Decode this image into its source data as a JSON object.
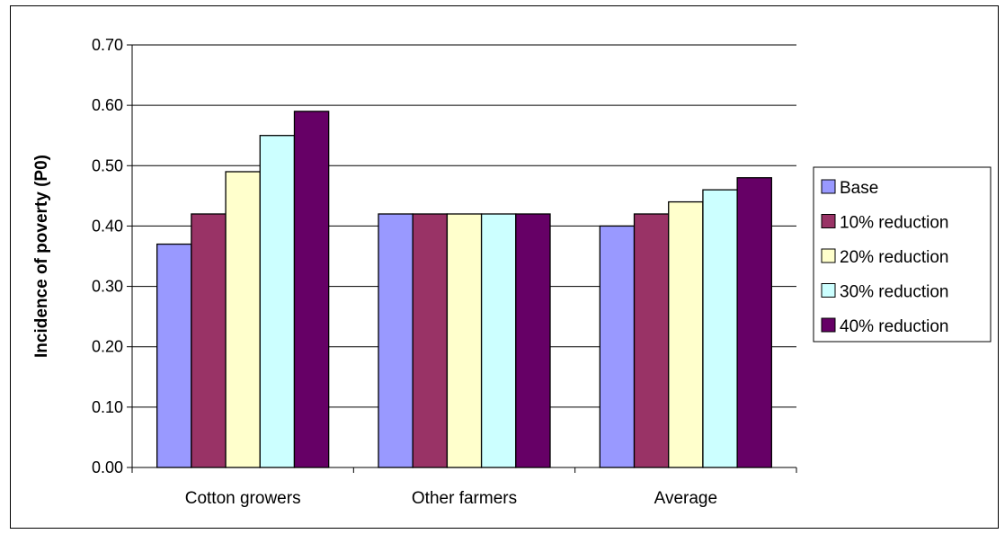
{
  "chart_data": {
    "type": "bar",
    "title": "",
    "xlabel": "",
    "ylabel": "Incidence of poverty (P0)",
    "ylim": [
      0,
      0.7
    ],
    "yticks": [
      "0.00",
      "0.10",
      "0.20",
      "0.30",
      "0.40",
      "0.50",
      "0.60",
      "0.70"
    ],
    "categories": [
      "Cotton growers",
      "Other farmers",
      "Average"
    ],
    "series": [
      {
        "name": "Base",
        "color": "#9999FF",
        "values": [
          0.37,
          0.42,
          0.4
        ]
      },
      {
        "name": "10% reduction",
        "color": "#993366",
        "values": [
          0.42,
          0.42,
          0.42
        ]
      },
      {
        "name": "20% reduction",
        "color": "#FFFFCC",
        "values": [
          0.49,
          0.42,
          0.44
        ]
      },
      {
        "name": "30% reduction",
        "color": "#CCFFFF",
        "values": [
          0.55,
          0.42,
          0.46
        ]
      },
      {
        "name": "40% reduction",
        "color": "#660066",
        "values": [
          0.59,
          0.42,
          0.48
        ]
      }
    ],
    "grid": true,
    "legend": "right"
  }
}
